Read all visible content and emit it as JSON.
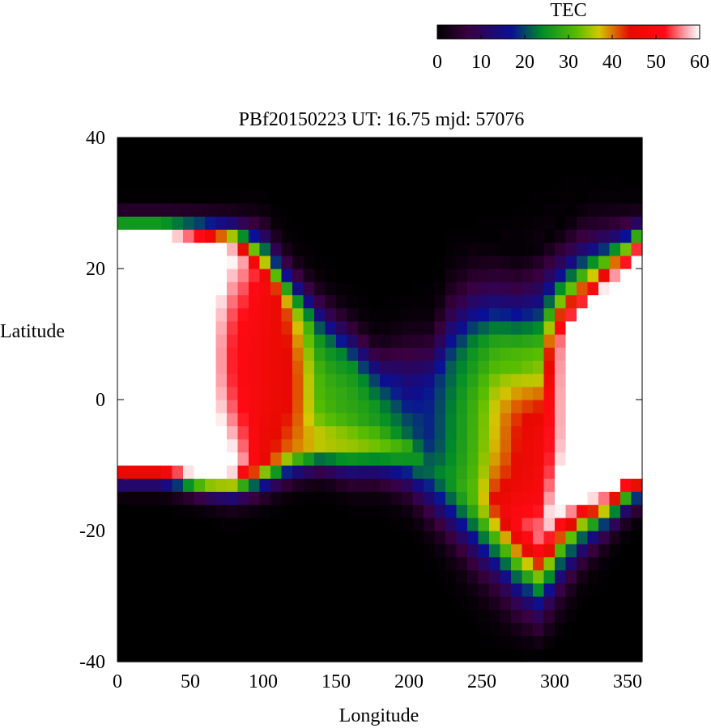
{
  "chart_data": {
    "type": "heatmap",
    "title": "PBf20150223  UT: 16.75  mjd: 57076",
    "xlabel": "Longitude",
    "ylabel": "Latitude",
    "xlim": [
      0,
      360
    ],
    "ylim": [
      -40,
      40
    ],
    "x_ticks": [
      "0",
      "50",
      "100",
      "150",
      "200",
      "250",
      "300",
      "350"
    ],
    "y_ticks": [
      "40",
      "20",
      "0",
      "-20",
      "-40"
    ],
    "colorbar": {
      "label": "TEC",
      "range": [
        0,
        60
      ],
      "ticks": [
        "0",
        "10",
        "20",
        "30",
        "40",
        "50",
        "60"
      ],
      "placement": "top-right",
      "stops": [
        {
          "value": 0,
          "color": "#000000"
        },
        {
          "value": 7,
          "color": "#3a0040"
        },
        {
          "value": 17,
          "color": "#0a1096"
        },
        {
          "value": 24,
          "color": "#008c28"
        },
        {
          "value": 32,
          "color": "#5abe00"
        },
        {
          "value": 37,
          "color": "#d2c800"
        },
        {
          "value": 44,
          "color": "#e60a00"
        },
        {
          "value": 52,
          "color": "#ff0a14"
        },
        {
          "value": 56,
          "color": "#ff8c96"
        },
        {
          "value": 60,
          "color": "#ffffff"
        }
      ]
    },
    "grid": {
      "lon_start": 0,
      "lon_step": 7.5,
      "lon_count": 48,
      "lat_start": -40,
      "lat_step": 2,
      "lat_count": 40
    },
    "tec_columns": [
      {
        "lon": 0,
        "low_edge": -25,
        "low_peak": -9,
        "low_width": 3,
        "low_amp": 70,
        "high_edge": 40,
        "high_peak": 24,
        "high_width": 3,
        "high_amp": 70,
        "bridge": 70
      },
      {
        "lon": 30,
        "low_edge": -25,
        "low_peak": -9,
        "low_width": 3,
        "low_amp": 70,
        "high_edge": 40,
        "high_peak": 24,
        "high_width": 3,
        "high_amp": 70,
        "bridge": 70
      },
      {
        "lon": 60,
        "low_edge": -25,
        "low_peak": -10,
        "low_width": 3.5,
        "low_amp": 70,
        "high_edge": 40,
        "high_peak": 23,
        "high_width": 3.5,
        "high_amp": 70,
        "bridge": 62
      },
      {
        "lon": 80,
        "low_edge": -24,
        "low_peak": -10,
        "low_width": 4,
        "low_amp": 62,
        "high_edge": 40,
        "high_peak": 22,
        "high_width": 4,
        "high_amp": 60,
        "bridge": 52
      },
      {
        "lon": 100,
        "low_edge": -23,
        "low_peak": -9,
        "low_width": 4,
        "low_amp": 45,
        "high_edge": 40,
        "high_peak": 18,
        "high_width": 6,
        "high_amp": 50,
        "bridge": 48
      },
      {
        "lon": 120,
        "low_edge": -24,
        "low_peak": -7,
        "low_width": 4,
        "low_amp": 40,
        "high_edge": 40,
        "high_peak": 12,
        "high_width": 6,
        "high_amp": 40,
        "bridge": 44
      },
      {
        "lon": 140,
        "low_edge": -25,
        "low_peak": -6,
        "low_width": 4,
        "low_amp": 38,
        "high_edge": 40,
        "high_peak": 8,
        "high_width": 6,
        "high_amp": 25,
        "bridge": 30
      },
      {
        "lon": 160,
        "low_edge": -27,
        "low_peak": -6,
        "low_width": 5,
        "low_amp": 36,
        "high_edge": 40,
        "high_peak": 4,
        "high_width": 6,
        "high_amp": 26,
        "bridge": 28
      },
      {
        "lon": 180,
        "low_edge": -29,
        "low_peak": -6,
        "low_width": 5,
        "low_amp": 34,
        "high_edge": 40,
        "high_peak": 0,
        "high_width": 6,
        "high_amp": 22,
        "bridge": 26
      },
      {
        "lon": 200,
        "low_edge": -32,
        "low_peak": -7,
        "low_width": 6,
        "low_amp": 28,
        "high_edge": 40,
        "high_peak": 0,
        "high_width": 8,
        "high_amp": 15,
        "bridge": 20
      },
      {
        "lon": 215,
        "low_edge": -34,
        "low_peak": -10,
        "low_width": 7,
        "low_amp": 22,
        "high_edge": 32,
        "high_peak": 0,
        "high_width": 8,
        "high_amp": 18,
        "bridge": 18
      },
      {
        "lon": 230,
        "low_edge": -36,
        "low_peak": -12,
        "low_width": 8,
        "low_amp": 26,
        "high_edge": 29,
        "high_peak": 4,
        "high_width": 10,
        "high_amp": 22,
        "bridge": 24
      },
      {
        "lon": 245,
        "low_edge": -39,
        "low_peak": -14,
        "low_width": 9,
        "low_amp": 32,
        "high_edge": 27,
        "high_peak": 6,
        "high_width": 10,
        "high_amp": 26,
        "bridge": 30
      },
      {
        "lon": 260,
        "low_edge": -40,
        "low_peak": -15,
        "low_width": 10,
        "low_amp": 45,
        "high_edge": 25,
        "high_peak": 6,
        "high_width": 10,
        "high_amp": 30,
        "bridge": 38
      },
      {
        "lon": 275,
        "low_edge": -40,
        "low_peak": -18,
        "low_width": 10,
        "low_amp": 52,
        "high_edge": 24,
        "high_peak": 5,
        "high_width": 10,
        "high_amp": 32,
        "bridge": 44
      },
      {
        "lon": 290,
        "low_edge": -40,
        "low_peak": -20,
        "low_width": 10,
        "low_amp": 56,
        "high_edge": 25,
        "high_peak": 4,
        "high_width": 12,
        "high_amp": 34,
        "bridge": 48
      },
      {
        "lon": 305,
        "low_edge": -38,
        "low_peak": -14,
        "low_width": 10,
        "low_amp": 64,
        "high_edge": 28,
        "high_peak": 8,
        "high_width": 10,
        "high_amp": 58,
        "bridge": 58
      },
      {
        "lon": 320,
        "low_edge": -35,
        "low_peak": -12,
        "low_width": 8,
        "low_amp": 70,
        "high_edge": 32,
        "high_peak": 10,
        "high_width": 10,
        "high_amp": 70,
        "bridge": 70
      },
      {
        "lon": 335,
        "low_edge": -31,
        "low_peak": -12,
        "low_width": 6,
        "low_amp": 70,
        "high_edge": 36,
        "high_peak": 14,
        "high_width": 8,
        "high_amp": 70,
        "bridge": 70
      },
      {
        "lon": 350,
        "low_edge": -28,
        "low_peak": -10,
        "low_width": 5,
        "low_amp": 70,
        "high_edge": 39,
        "high_peak": 18,
        "high_width": 6,
        "high_amp": 70,
        "bridge": 70
      },
      {
        "lon": 360,
        "low_edge": -27,
        "low_peak": -10,
        "low_width": 4,
        "low_amp": 70,
        "high_edge": 40,
        "high_peak": 22,
        "high_width": 4,
        "high_amp": 70,
        "bridge": 70
      }
    ]
  }
}
